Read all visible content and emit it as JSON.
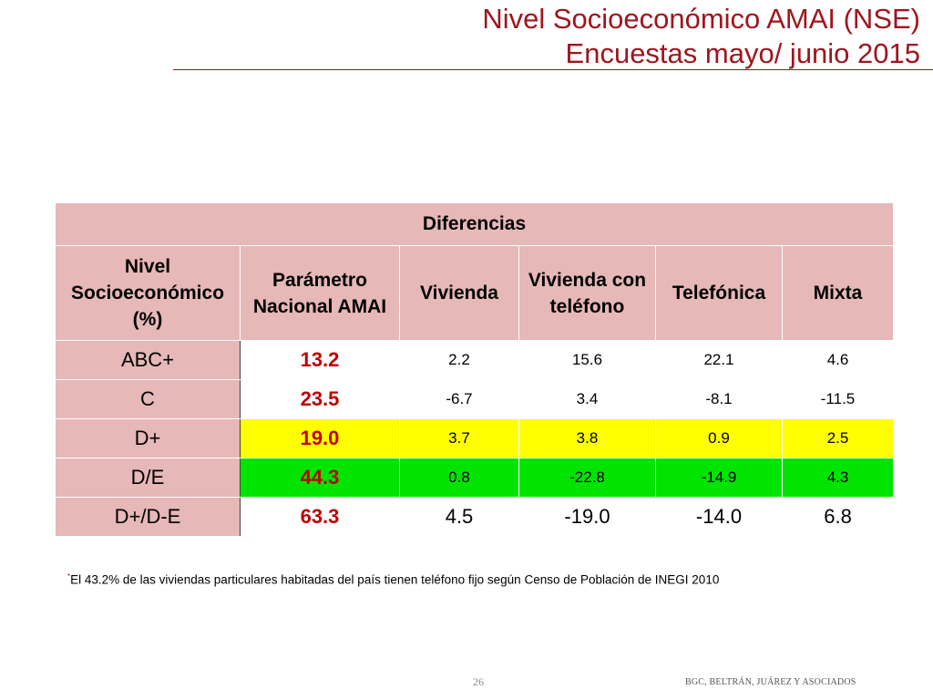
{
  "title": {
    "line1": "Nivel Socioeconómico AMAI (NSE)",
    "line2": "Encuestas mayo/ junio 2015"
  },
  "table": {
    "group_header": "Diferencias",
    "columns": [
      "Nivel Socioeconómico (%)",
      "Parámetro Nacional AMAI",
      "Vivienda",
      "Vivienda con teléfono",
      "Telefónica",
      "Mixta"
    ],
    "rows": [
      {
        "label": "ABC+",
        "param": "13.2",
        "values": [
          "2.2",
          "15.6",
          "22.1",
          "4.6"
        ],
        "highlight": "#ffffff"
      },
      {
        "label": "C",
        "param": "23.5",
        "values": [
          "-6.7",
          "3.4",
          "-8.1",
          "-11.5"
        ],
        "highlight": "#ffffff"
      },
      {
        "label": "D+",
        "param": "19.0",
        "values": [
          "3.7",
          "3.8",
          "0.9",
          "2.5"
        ],
        "highlight": "#ffff00"
      },
      {
        "label": "D/E",
        "param": "44.3",
        "values": [
          "0.8",
          "-22.8",
          "-14.9",
          "4.3"
        ],
        "highlight": "#00e400"
      },
      {
        "label": "D+/D-E",
        "param": "63.3",
        "values": [
          "4.5",
          "-19.0",
          "-14.0",
          "6.8"
        ],
        "highlight": "#ffffff"
      }
    ]
  },
  "footnote": {
    "marker": "*",
    "text": "El 43.2% de las viviendas particulares habitadas del país tienen teléfono fijo según Censo de Población de INEGI 2010"
  },
  "footer": {
    "page_number": "26",
    "firm": "BGC, BELTRÁN, JUÁREZ Y ASOCIADOS"
  },
  "colors": {
    "title": "#a0151e",
    "header_bg": "#e6b8b7",
    "param_text": "#c00000",
    "yellow_row": "#ffff00",
    "green_row": "#00e400"
  }
}
